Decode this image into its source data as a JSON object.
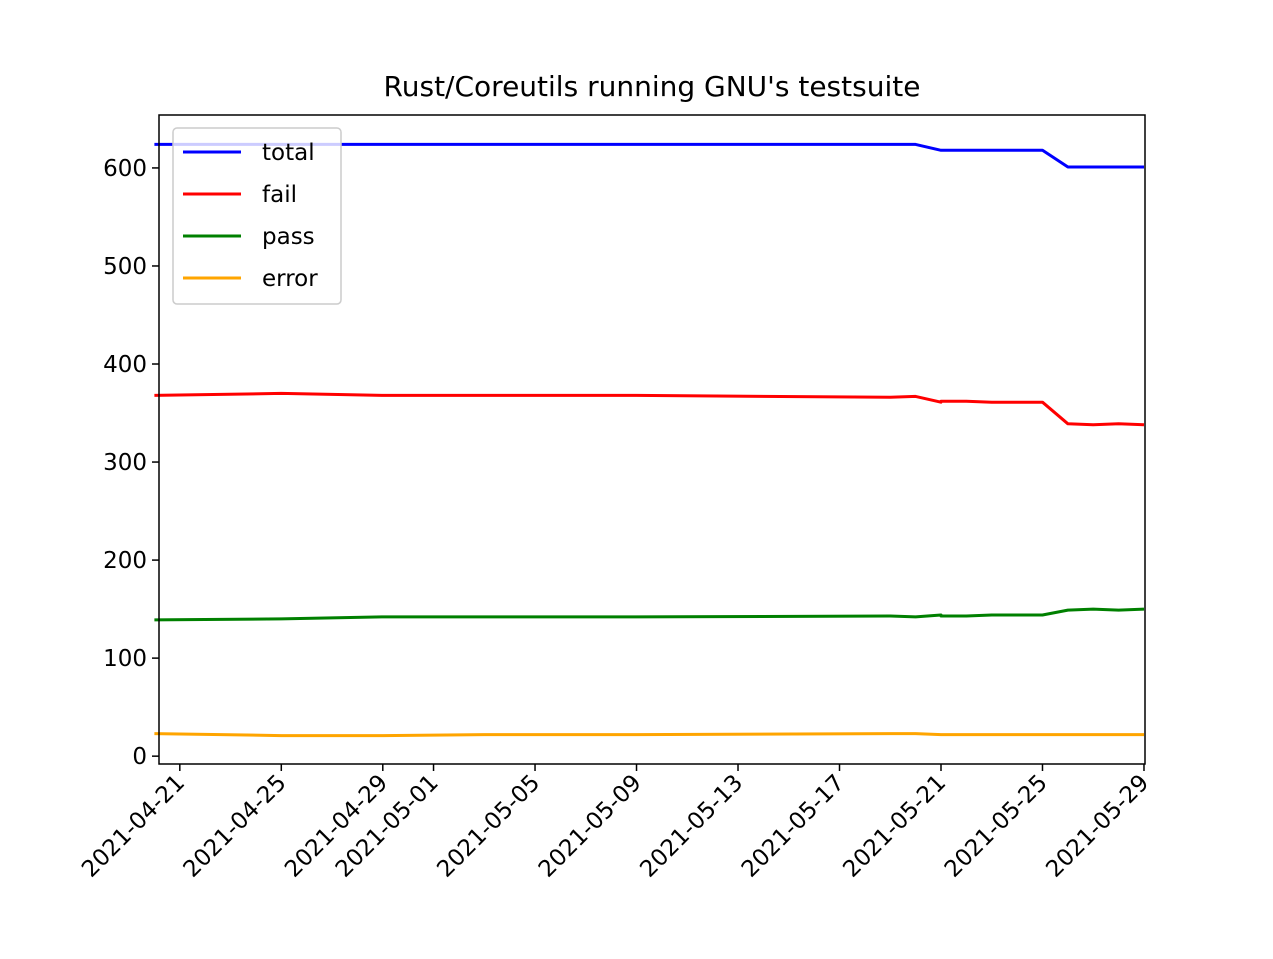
{
  "chart_data": {
    "type": "line",
    "title": "Rust/Coreutils running GNU's testsuite",
    "xlabel": "",
    "ylabel": "",
    "x_type": "date",
    "xlim": [
      "2021-04-20",
      "2021-05-29"
    ],
    "ylim": [
      -8,
      654
    ],
    "yticks": [
      0,
      100,
      200,
      300,
      400,
      500,
      600
    ],
    "xticks": [
      "2021-04-21",
      "2021-04-25",
      "2021-04-29",
      "2021-05-01",
      "2021-05-05",
      "2021-05-09",
      "2021-05-13",
      "2021-05-17",
      "2021-05-21",
      "2021-05-25",
      "2021-05-29"
    ],
    "grid": false,
    "legend_position": "upper-left",
    "series": [
      {
        "name": "total",
        "color": "#0000ff",
        "points": [
          {
            "x": "2021-04-20",
            "y": 624
          },
          {
            "x": "2021-05-19",
            "y": 624
          },
          {
            "x": "2021-05-20",
            "y": 624
          },
          {
            "x": "2021-05-21",
            "y": 618
          },
          {
            "x": "2021-05-25",
            "y": 618
          },
          {
            "x": "2021-05-26",
            "y": 601
          },
          {
            "x": "2021-05-29",
            "y": 601
          }
        ]
      },
      {
        "name": "fail",
        "color": "#ff0000",
        "points": [
          {
            "x": "2021-04-20",
            "y": 368
          },
          {
            "x": "2021-04-25",
            "y": 370
          },
          {
            "x": "2021-04-29",
            "y": 368
          },
          {
            "x": "2021-05-09",
            "y": 368
          },
          {
            "x": "2021-05-19",
            "y": 366
          },
          {
            "x": "2021-05-20",
            "y": 367
          },
          {
            "x": "2021-05-20",
            "y": 367
          },
          {
            "x": "2021-05-21",
            "y": 361
          },
          {
            "x": "2021-05-21",
            "y": 362
          },
          {
            "x": "2021-05-22",
            "y": 362
          },
          {
            "x": "2021-05-23",
            "y": 361
          },
          {
            "x": "2021-05-25",
            "y": 361
          },
          {
            "x": "2021-05-26",
            "y": 339
          },
          {
            "x": "2021-05-27",
            "y": 338
          },
          {
            "x": "2021-05-28",
            "y": 339
          },
          {
            "x": "2021-05-29",
            "y": 338
          }
        ]
      },
      {
        "name": "pass",
        "color": "#008000",
        "points": [
          {
            "x": "2021-04-20",
            "y": 139
          },
          {
            "x": "2021-04-25",
            "y": 140
          },
          {
            "x": "2021-04-29",
            "y": 142
          },
          {
            "x": "2021-05-09",
            "y": 142
          },
          {
            "x": "2021-05-19",
            "y": 143
          },
          {
            "x": "2021-05-20",
            "y": 142
          },
          {
            "x": "2021-05-20",
            "y": 142
          },
          {
            "x": "2021-05-21",
            "y": 144
          },
          {
            "x": "2021-05-21",
            "y": 143
          },
          {
            "x": "2021-05-22",
            "y": 143
          },
          {
            "x": "2021-05-23",
            "y": 144
          },
          {
            "x": "2021-05-25",
            "y": 144
          },
          {
            "x": "2021-05-26",
            "y": 149
          },
          {
            "x": "2021-05-27",
            "y": 150
          },
          {
            "x": "2021-05-28",
            "y": 149
          },
          {
            "x": "2021-05-29",
            "y": 150
          }
        ]
      },
      {
        "name": "error",
        "color": "#ffa500",
        "points": [
          {
            "x": "2021-04-20",
            "y": 23
          },
          {
            "x": "2021-04-25",
            "y": 21
          },
          {
            "x": "2021-04-29",
            "y": 21
          },
          {
            "x": "2021-05-03",
            "y": 22
          },
          {
            "x": "2021-05-09",
            "y": 22
          },
          {
            "x": "2021-05-19",
            "y": 23
          },
          {
            "x": "2021-05-20",
            "y": 23
          },
          {
            "x": "2021-05-21",
            "y": 22
          },
          {
            "x": "2021-05-25",
            "y": 22
          },
          {
            "x": "2021-05-29",
            "y": 22
          }
        ]
      }
    ]
  }
}
